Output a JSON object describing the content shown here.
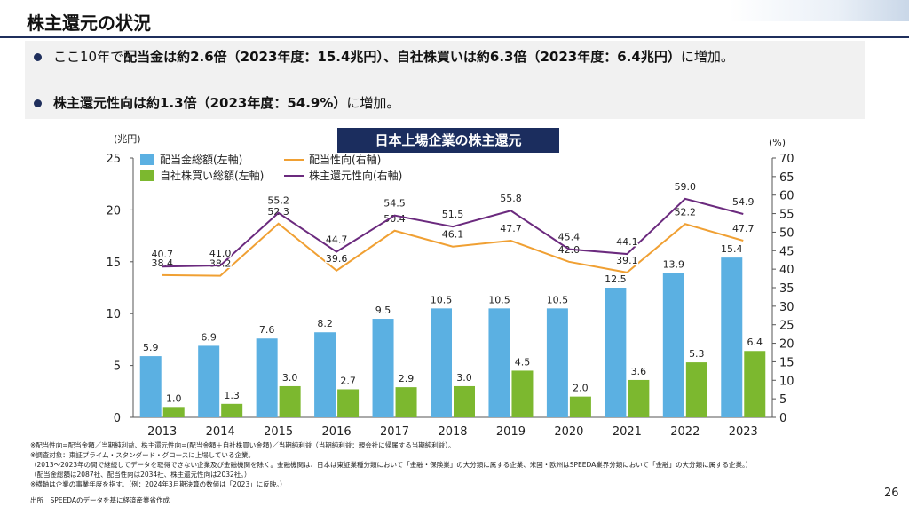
{
  "slide": {
    "title": "株主還元の状況",
    "bullets": [
      {
        "pre": "ここ10年で",
        "bold": "配当金は約2.6倍（2023年度：15.4兆円）、自社株買いは約6.3倍（2023年度：6.4兆円）",
        "post": "に増加。"
      },
      {
        "pre": "",
        "bold": "株主還元性向は約1.3倍（2023年度：54.9%）",
        "post": "に増加。"
      }
    ],
    "notes": [
      "※配当性向=配当金額／当期純利益、株主還元性向=(配当金額＋自社株買い金額)／当期純利益（当期純利益：親会社に帰属する当期純利益）。",
      "※調査対象：東証プライム・スタンダード・グロースに上場している企業。",
      "（2013～2023年の間で継続してデータを取得できない企業及び金融機関を除く。金融機関は、日本は東証業種分類において「金融・保険業」の大分類に属する企業、米国・欧州はSPEEDA業界分類において「金融」の大分類に属する企業。）",
      "（配当金総額は2087社、配当性向は2034社、株主還元性向は2032社。）",
      "※横軸は企業の事業年度を指す。（例：2024年3月期決算の数値は「2023」に反映。）"
    ],
    "source": "出所　SPEEDAのデータを基に経済産業省作成",
    "page_number": "26"
  },
  "chart_data": {
    "type": "bar",
    "title": "日本上場企業の株主還元",
    "y_left_label": "(兆円)",
    "y_right_label": "(%)",
    "y_left_range": [
      0,
      25
    ],
    "y_left_ticks": [
      "0",
      "5",
      "10",
      "15",
      "20",
      "25"
    ],
    "y_right_range": [
      0,
      70
    ],
    "y_right_ticks": [
      "0",
      "5",
      "10",
      "15",
      "20",
      "25",
      "30",
      "35",
      "40",
      "45",
      "50",
      "55",
      "60",
      "65",
      "70"
    ],
    "categories": [
      "2013",
      "2014",
      "2015",
      "2016",
      "2017",
      "2018",
      "2019",
      "2020",
      "2021",
      "2022",
      "2023"
    ],
    "bar_series": [
      {
        "name": "配当金総額(左軸)",
        "color": "#5bb0e2",
        "values": [
          5.9,
          6.9,
          7.6,
          8.2,
          9.5,
          10.5,
          10.5,
          10.5,
          12.5,
          13.9,
          15.4
        ],
        "labels": [
          "5.9",
          "6.9",
          "7.6",
          "8.2",
          "9.5",
          "10.5",
          "10.5",
          "10.5",
          "12.5",
          "13.9",
          "15.4"
        ]
      },
      {
        "name": "自社株買い総額(左軸)",
        "color": "#7cb82f",
        "values": [
          1.0,
          1.3,
          3.0,
          2.7,
          2.9,
          3.0,
          4.5,
          2.0,
          3.6,
          5.3,
          6.4
        ],
        "labels": [
          "1.0",
          "1.3",
          "3.0",
          "2.7",
          "2.9",
          "3.0",
          "4.5",
          "2.0",
          "3.6",
          "5.3",
          "6.4"
        ]
      }
    ],
    "line_series": [
      {
        "name": "配当性向(右軸)",
        "color": "#f0a033",
        "values": [
          38.4,
          38.2,
          52.3,
          39.6,
          50.4,
          46.1,
          47.7,
          42.0,
          39.1,
          52.2,
          47.7
        ],
        "labels": [
          "38.4",
          "38.2",
          "52.3",
          "39.6",
          "50.4",
          "46.1",
          "47.7",
          "42.0",
          "39.1",
          "52.2",
          "47.7"
        ]
      },
      {
        "name": "株主還元性向(右軸)",
        "color": "#6b2a7e",
        "values": [
          40.7,
          41.0,
          55.2,
          44.7,
          54.5,
          51.5,
          55.8,
          45.4,
          44.1,
          59.0,
          54.9
        ],
        "labels": [
          "40.7",
          "41.0",
          "55.2",
          "44.7",
          "54.5",
          "51.5",
          "55.8",
          "45.4",
          "44.1",
          "59.0",
          "54.9"
        ]
      }
    ],
    "legend_position": "top-left",
    "grid": false
  }
}
